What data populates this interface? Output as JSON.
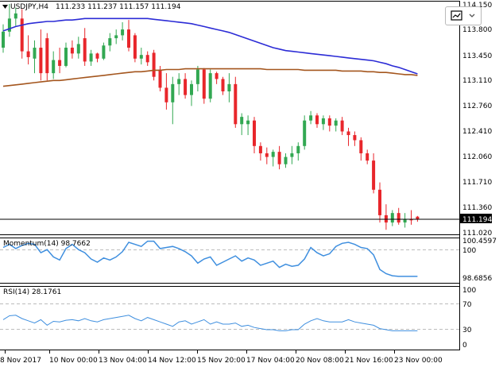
{
  "header": {
    "dropdown_icon": "triangle-down-icon",
    "title": "USDJPY,H4",
    "ohlc": "111.233 111.237 111.157 111.194"
  },
  "toolbar": {
    "chart_icon": "chart-image-icon",
    "caret_icon": "caret-down-icon"
  },
  "colors": {
    "up": "#32a852",
    "down": "#e8262b",
    "ma_fast": "#2c2cd6",
    "ma_slow": "#a4561e",
    "indicator": "#3f8fdf",
    "grid": "#bcbcbc",
    "background": "#ffffff"
  },
  "x_axis": {
    "labels": [
      "8 Nov 2017",
      "10 Nov 00:00",
      "13 Nov 04:00",
      "14 Nov 12:00",
      "15 Nov 20:00",
      "17 Nov 04:00",
      "20 Nov 08:00",
      "21 Nov 16:00",
      "23 Nov 00:00"
    ]
  },
  "chart_data": [
    {
      "type": "candlestick",
      "title": "USDJPY,H4",
      "ylim": [
        111.02,
        114.15
      ],
      "y_ticks": [
        "114.150",
        "113.800",
        "113.450",
        "113.110",
        "112.760",
        "112.410",
        "112.060",
        "111.710",
        "111.360",
        "111.020"
      ],
      "current_price": "111.194",
      "candles": [
        {
          "o": 113.55,
          "h": 113.87,
          "l": 113.48,
          "c": 113.77
        },
        {
          "o": 113.77,
          "h": 114.15,
          "l": 113.7,
          "c": 113.95
        },
        {
          "o": 113.95,
          "h": 114.1,
          "l": 113.85,
          "c": 114.02
        },
        {
          "o": 113.95,
          "h": 114.08,
          "l": 113.4,
          "c": 113.5
        },
        {
          "o": 113.5,
          "h": 113.72,
          "l": 113.32,
          "c": 113.42
        },
        {
          "o": 113.4,
          "h": 113.65,
          "l": 113.2,
          "c": 113.55
        },
        {
          "o": 113.55,
          "h": 113.8,
          "l": 113.1,
          "c": 113.2
        },
        {
          "o": 113.68,
          "h": 113.75,
          "l": 113.1,
          "c": 113.2
        },
        {
          "o": 113.2,
          "h": 113.5,
          "l": 113.12,
          "c": 113.38
        },
        {
          "o": 113.38,
          "h": 113.55,
          "l": 113.2,
          "c": 113.3
        },
        {
          "o": 113.3,
          "h": 113.62,
          "l": 113.28,
          "c": 113.55
        },
        {
          "o": 113.55,
          "h": 113.65,
          "l": 113.4,
          "c": 113.47
        },
        {
          "o": 113.47,
          "h": 113.7,
          "l": 113.4,
          "c": 113.6
        },
        {
          "o": 113.68,
          "h": 113.82,
          "l": 113.3,
          "c": 113.36
        },
        {
          "o": 113.36,
          "h": 113.52,
          "l": 113.3,
          "c": 113.47
        },
        {
          "o": 113.47,
          "h": 113.48,
          "l": 113.35,
          "c": 113.4
        },
        {
          "o": 113.4,
          "h": 113.62,
          "l": 113.38,
          "c": 113.58
        },
        {
          "o": 113.58,
          "h": 113.75,
          "l": 113.5,
          "c": 113.68
        },
        {
          "o": 113.68,
          "h": 113.8,
          "l": 113.6,
          "c": 113.72
        },
        {
          "o": 113.72,
          "h": 113.9,
          "l": 113.65,
          "c": 113.8
        },
        {
          "o": 113.8,
          "h": 113.93,
          "l": 113.5,
          "c": 113.55
        },
        {
          "o": 113.72,
          "h": 113.75,
          "l": 113.35,
          "c": 113.4
        },
        {
          "o": 113.4,
          "h": 113.55,
          "l": 113.32,
          "c": 113.45
        },
        {
          "o": 113.45,
          "h": 113.5,
          "l": 113.3,
          "c": 113.35
        },
        {
          "o": 113.48,
          "h": 113.52,
          "l": 113.1,
          "c": 113.15
        },
        {
          "o": 113.25,
          "h": 113.3,
          "l": 112.95,
          "c": 113.0
        },
        {
          "o": 113.0,
          "h": 113.2,
          "l": 112.7,
          "c": 112.8
        },
        {
          "o": 112.8,
          "h": 113.15,
          "l": 112.5,
          "c": 113.05
        },
        {
          "o": 113.05,
          "h": 113.2,
          "l": 112.9,
          "c": 113.12
        },
        {
          "o": 113.12,
          "h": 113.2,
          "l": 112.85,
          "c": 112.9
        },
        {
          "o": 112.9,
          "h": 113.1,
          "l": 112.75,
          "c": 113.05
        },
        {
          "o": 113.05,
          "h": 113.3,
          "l": 112.95,
          "c": 113.25
        },
        {
          "o": 113.25,
          "h": 113.27,
          "l": 112.78,
          "c": 112.85
        },
        {
          "o": 112.85,
          "h": 113.25,
          "l": 112.8,
          "c": 113.2
        },
        {
          "o": 113.2,
          "h": 113.22,
          "l": 113.05,
          "c": 113.12
        },
        {
          "o": 113.12,
          "h": 113.15,
          "l": 112.9,
          "c": 112.95
        },
        {
          "o": 112.95,
          "h": 113.2,
          "l": 112.8,
          "c": 113.05
        },
        {
          "o": 113.05,
          "h": 113.15,
          "l": 112.45,
          "c": 112.5
        },
        {
          "o": 112.5,
          "h": 112.65,
          "l": 112.35,
          "c": 112.6
        },
        {
          "o": 112.5,
          "h": 112.62,
          "l": 112.35,
          "c": 112.55
        },
        {
          "o": 112.55,
          "h": 112.6,
          "l": 112.1,
          "c": 112.2
        },
        {
          "o": 112.2,
          "h": 112.25,
          "l": 112.0,
          "c": 112.1
        },
        {
          "o": 112.1,
          "h": 112.18,
          "l": 111.95,
          "c": 112.05
        },
        {
          "o": 112.05,
          "h": 112.15,
          "l": 111.92,
          "c": 112.12
        },
        {
          "o": 112.12,
          "h": 112.2,
          "l": 111.88,
          "c": 111.95
        },
        {
          "o": 111.95,
          "h": 112.1,
          "l": 111.9,
          "c": 112.05
        },
        {
          "o": 112.05,
          "h": 112.2,
          "l": 111.95,
          "c": 112.1
        },
        {
          "o": 112.1,
          "h": 112.25,
          "l": 112.0,
          "c": 112.2
        },
        {
          "o": 112.2,
          "h": 112.62,
          "l": 112.15,
          "c": 112.55
        },
        {
          "o": 112.55,
          "h": 112.68,
          "l": 112.5,
          "c": 112.62
        },
        {
          "o": 112.62,
          "h": 112.65,
          "l": 112.45,
          "c": 112.5
        },
        {
          "o": 112.5,
          "h": 112.62,
          "l": 112.42,
          "c": 112.58
        },
        {
          "o": 112.58,
          "h": 112.62,
          "l": 112.4,
          "c": 112.48
        },
        {
          "o": 112.48,
          "h": 112.58,
          "l": 112.4,
          "c": 112.55
        },
        {
          "o": 112.55,
          "h": 112.6,
          "l": 112.35,
          "c": 112.4
        },
        {
          "o": 112.4,
          "h": 112.45,
          "l": 112.2,
          "c": 112.35
        },
        {
          "o": 112.35,
          "h": 112.4,
          "l": 112.2,
          "c": 112.28
        },
        {
          "o": 112.28,
          "h": 112.32,
          "l": 112.0,
          "c": 112.1
        },
        {
          "o": 112.1,
          "h": 112.15,
          "l": 111.95,
          "c": 112.0
        },
        {
          "o": 112.0,
          "h": 112.1,
          "l": 111.55,
          "c": 111.6
        },
        {
          "o": 111.6,
          "h": 111.7,
          "l": 111.15,
          "c": 111.25
        },
        {
          "o": 111.25,
          "h": 111.4,
          "l": 111.05,
          "c": 111.15
        },
        {
          "o": 111.15,
          "h": 111.32,
          "l": 111.1,
          "c": 111.28
        },
        {
          "o": 111.28,
          "h": 111.35,
          "l": 111.12,
          "c": 111.15
        },
        {
          "o": 111.15,
          "h": 111.28,
          "l": 111.08,
          "c": 111.2
        },
        {
          "o": 111.2,
          "h": 111.32,
          "l": 111.12,
          "c": 111.18
        },
        {
          "o": 111.23,
          "h": 111.24,
          "l": 111.16,
          "c": 111.19
        }
      ],
      "series": [
        {
          "type": "line",
          "color": "#2c2cd6",
          "values": [
            113.78,
            113.81,
            113.84,
            113.86,
            113.88,
            113.89,
            113.9,
            113.91,
            113.91,
            113.92,
            113.93,
            113.93,
            113.94,
            113.95,
            113.95,
            113.95,
            113.95,
            113.95,
            113.95,
            113.95,
            113.95,
            113.95,
            113.95,
            113.95,
            113.94,
            113.93,
            113.92,
            113.91,
            113.9,
            113.89,
            113.88,
            113.86,
            113.84,
            113.82,
            113.8,
            113.78,
            113.76,
            113.73,
            113.7,
            113.67,
            113.64,
            113.61,
            113.58,
            113.55,
            113.53,
            113.51,
            113.5,
            113.49,
            113.48,
            113.47,
            113.46,
            113.45,
            113.44,
            113.43,
            113.42,
            113.41,
            113.4,
            113.39,
            113.38,
            113.37,
            113.35,
            113.33,
            113.3,
            113.28,
            113.25,
            113.22,
            113.19
          ]
        },
        {
          "type": "line",
          "color": "#a4561e",
          "values": [
            113.02,
            113.03,
            113.04,
            113.05,
            113.06,
            113.07,
            113.08,
            113.09,
            113.1,
            113.1,
            113.11,
            113.12,
            113.13,
            113.14,
            113.15,
            113.16,
            113.17,
            113.18,
            113.19,
            113.2,
            113.21,
            113.22,
            113.22,
            113.23,
            113.24,
            113.24,
            113.25,
            113.25,
            113.25,
            113.26,
            113.26,
            113.26,
            113.26,
            113.26,
            113.26,
            113.26,
            113.26,
            113.26,
            113.26,
            113.26,
            113.26,
            113.26,
            113.25,
            113.25,
            113.25,
            113.25,
            113.25,
            113.25,
            113.24,
            113.24,
            113.24,
            113.24,
            113.24,
            113.24,
            113.23,
            113.23,
            113.23,
            113.23,
            113.22,
            113.22,
            113.21,
            113.21,
            113.2,
            113.19,
            113.18,
            113.18,
            113.17
          ]
        }
      ]
    },
    {
      "type": "line",
      "title": "Momentum(14) 98.7662",
      "ylim": [
        98.5,
        100.55
      ],
      "y_ticks": [
        "100.4597",
        "100",
        "98.6856"
      ],
      "series": [
        {
          "name": "Momentum(14)",
          "color": "#3f8fdf",
          "values": [
            100.15,
            100.3,
            100.1,
            100.25,
            100.35,
            100.3,
            99.9,
            100.05,
            99.7,
            99.55,
            100.1,
            100.3,
            100.05,
            99.9,
            99.6,
            99.45,
            99.65,
            99.55,
            99.7,
            99.95,
            100.4,
            100.3,
            100.2,
            100.45,
            100.45,
            100.1,
            100.15,
            100.2,
            100.1,
            99.95,
            99.75,
            99.4,
            99.6,
            99.7,
            99.3,
            99.45,
            99.6,
            99.75,
            99.5,
            99.65,
            99.55,
            99.3,
            99.4,
            99.5,
            99.2,
            99.35,
            99.25,
            99.3,
            99.6,
            100.15,
            99.9,
            99.75,
            99.85,
            100.2,
            100.35,
            100.4,
            100.3,
            100.15,
            100.1,
            99.8,
            99.1,
            98.9,
            98.8,
            98.77,
            98.77,
            98.77,
            98.77
          ]
        }
      ]
    },
    {
      "type": "line",
      "title": "RSI(14) 28.1761",
      "ylim": [
        0,
        100
      ],
      "y_ticks": [
        "100",
        "70",
        "30",
        "0"
      ],
      "series": [
        {
          "name": "RSI(14)",
          "color": "#3f8fdf",
          "values": [
            48,
            55,
            56,
            50,
            46,
            42,
            48,
            38,
            45,
            44,
            47,
            48,
            46,
            50,
            46,
            44,
            48,
            50,
            52,
            54,
            56,
            50,
            46,
            52,
            48,
            44,
            40,
            36,
            44,
            46,
            40,
            44,
            48,
            40,
            44,
            40,
            40,
            42,
            36,
            38,
            34,
            32,
            30,
            30,
            28,
            28,
            30,
            30,
            40,
            46,
            50,
            46,
            44,
            44,
            44,
            48,
            44,
            42,
            40,
            38,
            32,
            30,
            28,
            28,
            28,
            28,
            28
          ]
        }
      ]
    }
  ]
}
